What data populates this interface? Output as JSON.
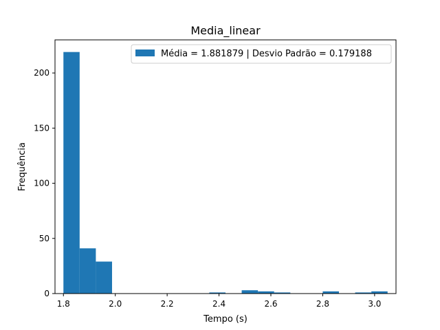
{
  "chart_data": {
    "type": "bar",
    "title": "Media_linear",
    "xlabel": "Tempo (s)",
    "ylabel": "Frequência",
    "xlim": [
      1.7675,
      3.0825
    ],
    "ylim": [
      0,
      230
    ],
    "xticks": [
      1.8,
      2.0,
      2.2,
      2.4,
      2.6,
      2.8,
      3.0
    ],
    "xtick_labels": [
      "1.8",
      "2.0",
      "2.2",
      "2.4",
      "2.6",
      "2.8",
      "3.0"
    ],
    "yticks": [
      0,
      50,
      100,
      150,
      200
    ],
    "ytick_labels": [
      "0",
      "50",
      "100",
      "150",
      "200"
    ],
    "grid": false,
    "legend_position": "top-right",
    "series": [
      {
        "name": "Média = 1.881879 | Desvio Padrão = 0.179188",
        "color": "#1f77b4",
        "bins": [
          {
            "start": 1.8,
            "end": 1.8625,
            "value": 219
          },
          {
            "start": 1.8625,
            "end": 1.925,
            "value": 41
          },
          {
            "start": 1.925,
            "end": 1.9875,
            "value": 29
          },
          {
            "start": 1.9875,
            "end": 2.05,
            "value": 0
          },
          {
            "start": 2.05,
            "end": 2.1125,
            "value": 0
          },
          {
            "start": 2.1125,
            "end": 2.175,
            "value": 0
          },
          {
            "start": 2.175,
            "end": 2.2375,
            "value": 0
          },
          {
            "start": 2.2375,
            "end": 2.3,
            "value": 0
          },
          {
            "start": 2.3,
            "end": 2.3625,
            "value": 0
          },
          {
            "start": 2.3625,
            "end": 2.425,
            "value": 1
          },
          {
            "start": 2.425,
            "end": 2.4875,
            "value": 0
          },
          {
            "start": 2.4875,
            "end": 2.55,
            "value": 3
          },
          {
            "start": 2.55,
            "end": 2.6125,
            "value": 2
          },
          {
            "start": 2.6125,
            "end": 2.675,
            "value": 1
          },
          {
            "start": 2.675,
            "end": 2.7375,
            "value": 0
          },
          {
            "start": 2.7375,
            "end": 2.8,
            "value": 0
          },
          {
            "start": 2.8,
            "end": 2.8625,
            "value": 2
          },
          {
            "start": 2.8625,
            "end": 2.925,
            "value": 0
          },
          {
            "start": 2.925,
            "end": 2.9875,
            "value": 1
          },
          {
            "start": 2.9875,
            "end": 3.05,
            "value": 2
          }
        ]
      }
    ]
  }
}
